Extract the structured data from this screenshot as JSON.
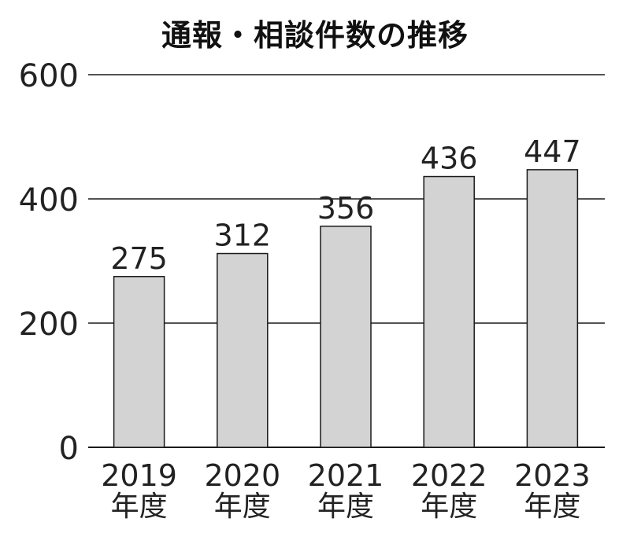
{
  "chart_data": {
    "type": "bar",
    "title": "通報・相談件数の推移",
    "categories": [
      "2019",
      "2020",
      "2021",
      "2022",
      "2023"
    ],
    "category_suffix": "年度",
    "values": [
      275,
      312,
      356,
      436,
      447
    ],
    "ylim": [
      0,
      600
    ],
    "yticks": [
      0,
      200,
      400,
      600
    ],
    "xlabel": "",
    "ylabel": "",
    "grid": true,
    "data_labels": true,
    "colors": {
      "bar_fill": "#d3d3d3",
      "bar_stroke": "#1a1a1a",
      "gridline": "#1a1a1a",
      "text": "#222222"
    }
  }
}
